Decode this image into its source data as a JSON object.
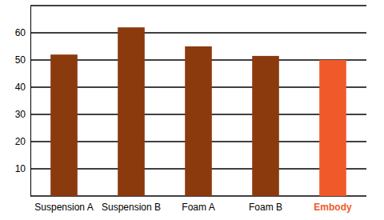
{
  "chart_data": {
    "type": "bar",
    "categories": [
      "Suspension A",
      "Suspension B",
      "Foam A",
      "Foam B",
      "Embody"
    ],
    "values": [
      52,
      62,
      55,
      51.5,
      50
    ],
    "colors": [
      "#8b3a0e",
      "#8b3a0e",
      "#8b3a0e",
      "#8b3a0e",
      "#f05a2a"
    ],
    "ylim": [
      0,
      70
    ],
    "yticks": [
      10,
      20,
      30,
      40,
      50,
      60
    ],
    "grid": true
  }
}
